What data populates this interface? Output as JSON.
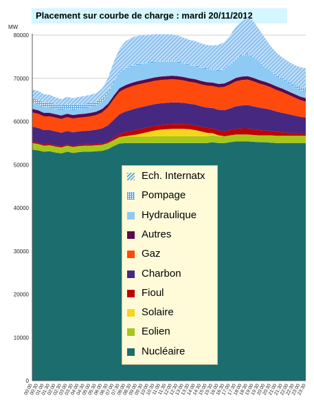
{
  "title": "Placement sur courbe de charge : mardi 20/11/2012",
  "chart_data": {
    "type": "area",
    "title": "Placement sur courbe de charge : mardi 20/11/2012",
    "ylabel": "MW",
    "ylim": [
      0,
      80000
    ],
    "yticks": [
      0,
      10000,
      20000,
      30000,
      40000,
      50000,
      60000,
      70000,
      80000
    ],
    "grid": true,
    "legend_position": "center",
    "x": [
      "00:00",
      "00:30",
      "01:00",
      "01:30",
      "02:00",
      "02:30",
      "03:00",
      "03:30",
      "04:00",
      "04:30",
      "05:00",
      "05:30",
      "06:00",
      "06:30",
      "07:00",
      "07:30",
      "08:00",
      "08:30",
      "09:00",
      "09:30",
      "10:00",
      "10:30",
      "11:00",
      "11:30",
      "12:00",
      "12:30",
      "13:00",
      "13:30",
      "14:00",
      "14:30",
      "15:00",
      "15:30",
      "16:00",
      "16:30",
      "17:00",
      "17:30",
      "18:00",
      "18:30",
      "19:00",
      "19:30",
      "20:00",
      "20:30",
      "21:00",
      "21:30",
      "22:00",
      "22:30",
      "23:00",
      "23:30"
    ],
    "series": [
      {
        "name": "Nucléaire",
        "color": "#1c6e6e",
        "pattern": "solid",
        "values": [
          53500,
          53300,
          53000,
          53100,
          52800,
          52600,
          53000,
          52700,
          52900,
          53000,
          53000,
          53100,
          53200,
          53600,
          54300,
          54900,
          55000,
          55000,
          55000,
          55000,
          55000,
          55000,
          55000,
          55000,
          55000,
          55000,
          55000,
          55000,
          55000,
          55000,
          55000,
          55200,
          55000,
          55000,
          55200,
          55400,
          55400,
          55400,
          55300,
          55200,
          55200,
          55100,
          55000,
          55000,
          55000,
          55000,
          55000,
          55000
        ]
      },
      {
        "name": "Eolien",
        "color": "#a6c71a",
        "pattern": "solid",
        "values": [
          1500,
          1500,
          1400,
          1400,
          1400,
          1400,
          1400,
          1400,
          1400,
          1400,
          1400,
          1400,
          1400,
          1400,
          1400,
          1500,
          1500,
          1500,
          1500,
          1500,
          1500,
          1600,
          1600,
          1600,
          1600,
          1600,
          1600,
          1600,
          1600,
          1600,
          1600,
          1600,
          1600,
          1600,
          1600,
          1600,
          1600,
          1600,
          1600,
          1600,
          1600,
          1700,
          1700,
          1700,
          1700,
          1700,
          1700,
          1700
        ]
      },
      {
        "name": "Solaire",
        "color": "#f7d51e",
        "pattern": "solid",
        "values": [
          0,
          0,
          0,
          0,
          0,
          0,
          0,
          0,
          0,
          0,
          0,
          0,
          0,
          0,
          0,
          0,
          100,
          300,
          500,
          800,
          1100,
          1300,
          1500,
          1600,
          1700,
          1700,
          1700,
          1600,
          1400,
          1100,
          800,
          500,
          200,
          0,
          0,
          0,
          0,
          0,
          0,
          0,
          0,
          0,
          0,
          0,
          0,
          0,
          0,
          0
        ]
      },
      {
        "name": "Fioul",
        "color": "#c00000",
        "pattern": "solid",
        "values": [
          300,
          300,
          300,
          300,
          300,
          300,
          300,
          300,
          300,
          300,
          300,
          300,
          300,
          300,
          500,
          700,
          900,
          1000,
          1100,
          1100,
          1100,
          1100,
          1100,
          1100,
          1100,
          1100,
          1100,
          1100,
          1100,
          1100,
          1100,
          1100,
          1100,
          1100,
          1200,
          1300,
          1400,
          1400,
          1300,
          1200,
          1100,
          1000,
          900,
          800,
          700,
          600,
          500,
          400
        ]
      },
      {
        "name": "Charbon",
        "color": "#472880",
        "pattern": "solid",
        "values": [
          3500,
          3400,
          3300,
          3200,
          3200,
          3100,
          3100,
          3100,
          3100,
          3100,
          3200,
          3300,
          3500,
          3800,
          4200,
          4600,
          4800,
          4900,
          5000,
          5000,
          5000,
          5000,
          5000,
          5000,
          5000,
          5000,
          4900,
          4800,
          4800,
          4700,
          4700,
          4700,
          4800,
          4900,
          5000,
          5200,
          5300,
          5400,
          5300,
          5200,
          5100,
          4900,
          4700,
          4500,
          4300,
          4100,
          3900,
          3800
        ]
      },
      {
        "name": "Gaz",
        "color": "#ff4a0e",
        "pattern": "solid",
        "values": [
          3300,
          3300,
          3200,
          3200,
          3200,
          3200,
          3200,
          3200,
          3200,
          3200,
          3300,
          3400,
          3700,
          4200,
          4800,
          5200,
          5300,
          5400,
          5400,
          5400,
          5400,
          5400,
          5400,
          5400,
          5400,
          5300,
          5200,
          5100,
          5100,
          5100,
          5100,
          5100,
          5200,
          5400,
          5600,
          5800,
          5900,
          5900,
          5800,
          5600,
          5400,
          5200,
          5000,
          4800,
          4500,
          4200,
          3900,
          3700
        ]
      },
      {
        "name": "Autres",
        "color": "#5b0a4a",
        "pattern": "solid",
        "values": [
          800,
          800,
          800,
          800,
          800,
          800,
          800,
          800,
          800,
          800,
          800,
          800,
          800,
          800,
          800,
          800,
          800,
          800,
          800,
          800,
          800,
          800,
          800,
          800,
          800,
          800,
          800,
          800,
          800,
          800,
          800,
          800,
          800,
          800,
          800,
          800,
          800,
          800,
          800,
          800,
          800,
          800,
          800,
          800,
          800,
          800,
          800,
          800
        ]
      },
      {
        "name": "Hydraulique",
        "color": "#8ecaf3",
        "pattern": "solid",
        "values": [
          1500,
          1400,
          1300,
          1200,
          1100,
          1100,
          1100,
          1100,
          1100,
          1200,
          1300,
          1400,
          1700,
          2300,
          3000,
          3500,
          3700,
          3800,
          3800,
          3700,
          3600,
          3500,
          3400,
          3300,
          3300,
          3200,
          3100,
          3000,
          3000,
          3000,
          3000,
          3000,
          3000,
          3200,
          3600,
          4200,
          4800,
          5000,
          4700,
          4000,
          3300,
          2700,
          2300,
          2000,
          1800,
          1600,
          1500,
          1400
        ]
      },
      {
        "name": "Pompage",
        "color": "#4aa0e8",
        "pattern": "grid",
        "values": [
          1000,
          1000,
          1100,
          1200,
          1200,
          1200,
          1200,
          1200,
          1200,
          1100,
          1000,
          900,
          700,
          500,
          300,
          200,
          200,
          200,
          200,
          200,
          200,
          200,
          200,
          200,
          200,
          200,
          200,
          200,
          200,
          200,
          200,
          200,
          200,
          200,
          200,
          200,
          200,
          200,
          200,
          200,
          200,
          200,
          300,
          400,
          500,
          600,
          700,
          800
        ]
      },
      {
        "name": "Ech. Internatx",
        "color": "#4aa0e8",
        "pattern": "hatch",
        "values": [
          2000,
          2100,
          1900,
          1800,
          1600,
          1500,
          1600,
          1600,
          1700,
          1800,
          1900,
          2000,
          2300,
          3100,
          4500,
          5500,
          6200,
          6500,
          6500,
          6500,
          6400,
          6300,
          6200,
          6200,
          6100,
          6000,
          5800,
          5700,
          5600,
          5500,
          5400,
          5400,
          5800,
          6200,
          6700,
          7500,
          7800,
          8400,
          8200,
          7500,
          6600,
          5800,
          5200,
          4800,
          4600,
          4500,
          4600,
          4700
        ]
      }
    ]
  },
  "legend": [
    {
      "label": "Ech. Internatx",
      "color": "#4aa0e8",
      "pattern": "hatch"
    },
    {
      "label": "Pompage",
      "color": "#4aa0e8",
      "pattern": "grid"
    },
    {
      "label": "Hydraulique",
      "color": "#8ecaf3",
      "pattern": "solid"
    },
    {
      "label": "Autres",
      "color": "#5b0a4a",
      "pattern": "solid"
    },
    {
      "label": "Gaz",
      "color": "#ff4a0e",
      "pattern": "solid"
    },
    {
      "label": "Charbon",
      "color": "#472880",
      "pattern": "solid"
    },
    {
      "label": "Fioul",
      "color": "#c00000",
      "pattern": "solid"
    },
    {
      "label": "Solaire",
      "color": "#f7d51e",
      "pattern": "solid"
    },
    {
      "label": "Eolien",
      "color": "#a6c71a",
      "pattern": "solid"
    },
    {
      "label": "Nucléaire",
      "color": "#1c6e6e",
      "pattern": "solid"
    }
  ]
}
